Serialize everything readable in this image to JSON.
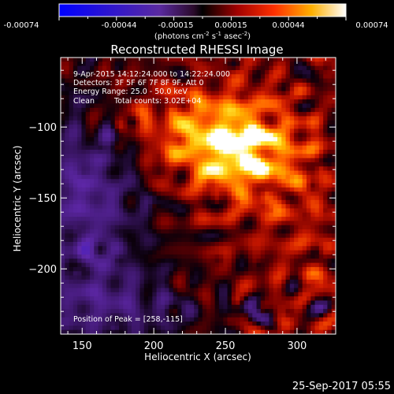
{
  "colorbar": {
    "tick_labels": [
      "-0.00074",
      "-0.00044",
      "-0.00015",
      "0.00015",
      "0.00044",
      "0.00074"
    ],
    "units_prefix": "(photons cm",
    "units_exp1": "-2",
    "units_mid": " s",
    "units_exp2": "-1",
    "units_mid2": " asec",
    "units_exp3": "-2",
    "units_suffix": ")"
  },
  "chart_data": {
    "type": "heatmap",
    "title": "Reconstructed RHESSI Image",
    "xlabel": "Heliocentric X (arcsec)",
    "ylabel": "Heliocentric Y (arcsec)",
    "x_ticks": [
      150,
      200,
      250,
      300
    ],
    "y_ticks": [
      -100,
      -150,
      -200
    ],
    "xlim": [
      135,
      327
    ],
    "ylim": [
      -246,
      -51
    ],
    "peak": [
      258,
      -115
    ],
    "value_range": [
      -0.00074,
      0.00074
    ],
    "colormap": [
      "#0000ff",
      "#5b2aa8",
      "#3a1a6a",
      "#000000",
      "#7a0000",
      "#d02000",
      "#ff6a00",
      "#ffc000",
      "#ffffff"
    ]
  },
  "info": {
    "line1": "9-Apr-2015 14:12:24.000 to 14:22:24.000",
    "line2": "Detectors: 3F 5F 6F 7F 8F 9F, Att 0",
    "line3": "Energy Range: 25.0 - 50.0 keV",
    "line4_a": "Clean",
    "line4_b": "Total counts: 3.02E+04",
    "peak_text": "Position of Peak = [258,-115]"
  },
  "timestamp": "25-Sep-2017 05:55"
}
